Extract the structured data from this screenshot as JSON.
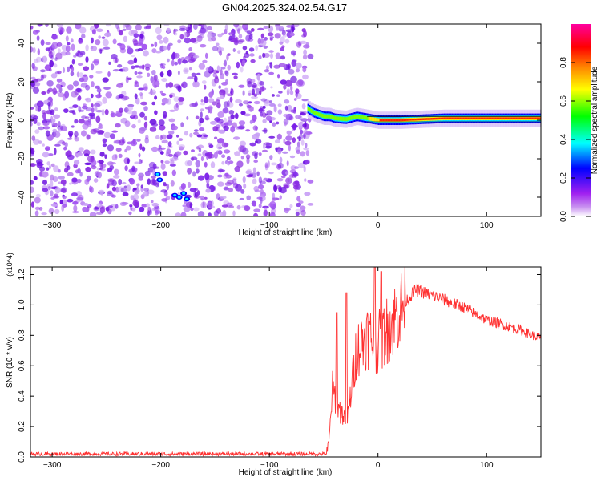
{
  "title": "GN04.2025.324.02.54.G17",
  "chart_data": [
    {
      "type": "heatmap",
      "title": "GN04.2025.324.02.54.G17",
      "xlabel": "Height of straight line (km)",
      "ylabel": "Frequency (Hz)",
      "xlim": [
        -320,
        150
      ],
      "ylim": [
        -50,
        50
      ],
      "xticks": [
        -300,
        -200,
        -100,
        0,
        100
      ],
      "yticks": [
        -40,
        -20,
        0,
        20,
        40
      ],
      "colorbar": {
        "label": "Normalized spectral amplitude",
        "range": [
          0,
          1
        ],
        "ticks": [
          0.0,
          0.2,
          0.4,
          0.6,
          0.8
        ],
        "tick_labels": [
          "0.0",
          "0.2",
          "0.4",
          "0.6",
          "0.8"
        ],
        "stops": [
          "#ffffff",
          "#a020f0",
          "#0000ff",
          "#00ffff",
          "#00ff00",
          "#ffff00",
          "#ff8000",
          "#ff0000",
          "#ff00a0"
        ]
      },
      "noise_region": {
        "x": [
          -320,
          -62
        ],
        "y": [
          -50,
          50
        ]
      },
      "noise_cluster": [
        {
          "x": -203,
          "y": -28
        },
        {
          "x": -201,
          "y": -31
        },
        {
          "x": -187,
          "y": -39
        },
        {
          "x": -183,
          "y": -40
        },
        {
          "x": -179,
          "y": -38
        },
        {
          "x": -176,
          "y": -41
        }
      ],
      "signal_band": {
        "x": [
          -65,
          150
        ],
        "center_y": [
          [
            -65,
            6
          ],
          [
            -60,
            4
          ],
          [
            -55,
            3
          ],
          [
            -50,
            2
          ],
          [
            -45,
            2
          ],
          [
            -40,
            1
          ],
          [
            -30,
            0.5
          ],
          [
            -20,
            2
          ],
          [
            -10,
            1
          ],
          [
            0,
            0
          ],
          [
            20,
            0
          ],
          [
            60,
            1
          ],
          [
            100,
            1
          ],
          [
            150,
            1
          ]
        ],
        "peak_amplitude": 1.0
      }
    },
    {
      "type": "line",
      "xlabel": "Height of straight line (km)",
      "ylabel": "SNR (10 * v/v)",
      "scale_note": "(x10^4)",
      "xlim": [
        -320,
        150
      ],
      "ylim": [
        0,
        1.25
      ],
      "xticks": [
        -300,
        -200,
        -100,
        0,
        100
      ],
      "yticks": [
        0.0,
        0.2,
        0.4,
        0.6,
        0.8,
        1.0,
        1.2
      ],
      "color": "#ff3030",
      "series": [
        {
          "name": "SNR",
          "profile": [
            [
              -320,
              0.02
            ],
            [
              -47,
              0.02
            ],
            [
              -45,
              0.1
            ],
            [
              -42,
              0.45
            ],
            [
              -35,
              0.3
            ],
            [
              -28,
              0.25
            ],
            [
              -20,
              0.7
            ],
            [
              -10,
              0.8
            ],
            [
              0,
              0.75
            ],
            [
              10,
              0.85
            ],
            [
              25,
              1.02
            ],
            [
              35,
              1.1
            ],
            [
              55,
              1.05
            ],
            [
              80,
              0.98
            ],
            [
              100,
              0.9
            ],
            [
              125,
              0.85
            ],
            [
              150,
              0.78
            ]
          ],
          "spikes": [
            [
              -38,
              0.95
            ],
            [
              -29,
              1.08
            ],
            [
              -3,
              1.25
            ],
            [
              3,
              1.22
            ]
          ]
        }
      ]
    }
  ]
}
